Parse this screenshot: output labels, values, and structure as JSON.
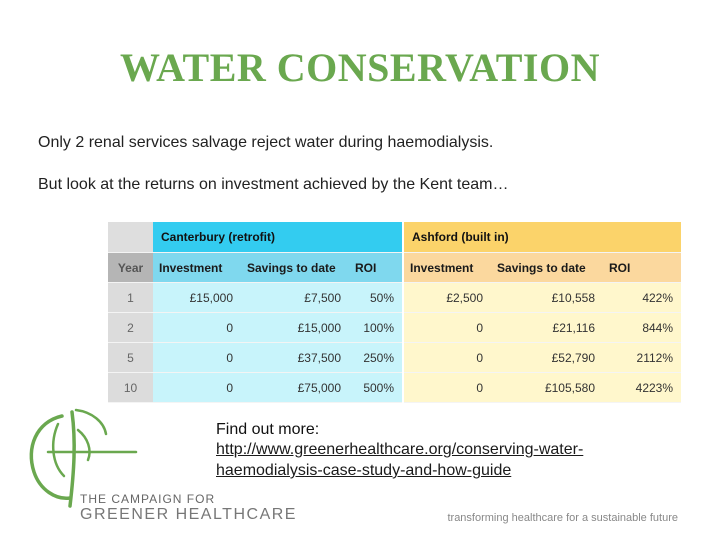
{
  "title": "WATER CONSERVATION",
  "intro_line1": "Only 2 renal services salvage reject water during haemodialysis.",
  "intro_line2": "But look at the returns on investment achieved by the Kent team…",
  "table": {
    "group_canterbury": "Canterbury (retrofit)",
    "group_ashford": "Ashford (built in)",
    "col_year": "Year",
    "col_investment": "Investment",
    "col_savings": "Savings to date",
    "col_roi": "ROI",
    "rows": [
      {
        "year": "1",
        "can_inv": "£15,000",
        "can_sav": "£7,500",
        "can_roi": "50%",
        "ash_inv": "£2,500",
        "ash_sav": "£10,558",
        "ash_roi": "422%"
      },
      {
        "year": "2",
        "can_inv": "0",
        "can_sav": "£15,000",
        "can_roi": "100%",
        "ash_inv": "0",
        "ash_sav": "£21,116",
        "ash_roi": "844%"
      },
      {
        "year": "5",
        "can_inv": "0",
        "can_sav": "£37,500",
        "can_roi": "250%",
        "ash_inv": "0",
        "ash_sav": "£52,790",
        "ash_roi": "2112%"
      },
      {
        "year": "10",
        "can_inv": "0",
        "can_sav": "£75,000",
        "can_roi": "500%",
        "ash_inv": "0",
        "ash_sav": "£105,580",
        "ash_roi": "4223%"
      }
    ]
  },
  "logo": {
    "line1": "THE CAMPAIGN FOR",
    "line2": "GREENER HEALTHCARE",
    "color": "#6aa84f"
  },
  "find_out_more": "Find out more:",
  "link_line1": "http://www.greenerhealthcare.org/conserving-water-",
  "link_line2": "haemodialysis-case-study-and-how-guide",
  "tagline": "transforming healthcare for a sustainable future"
}
